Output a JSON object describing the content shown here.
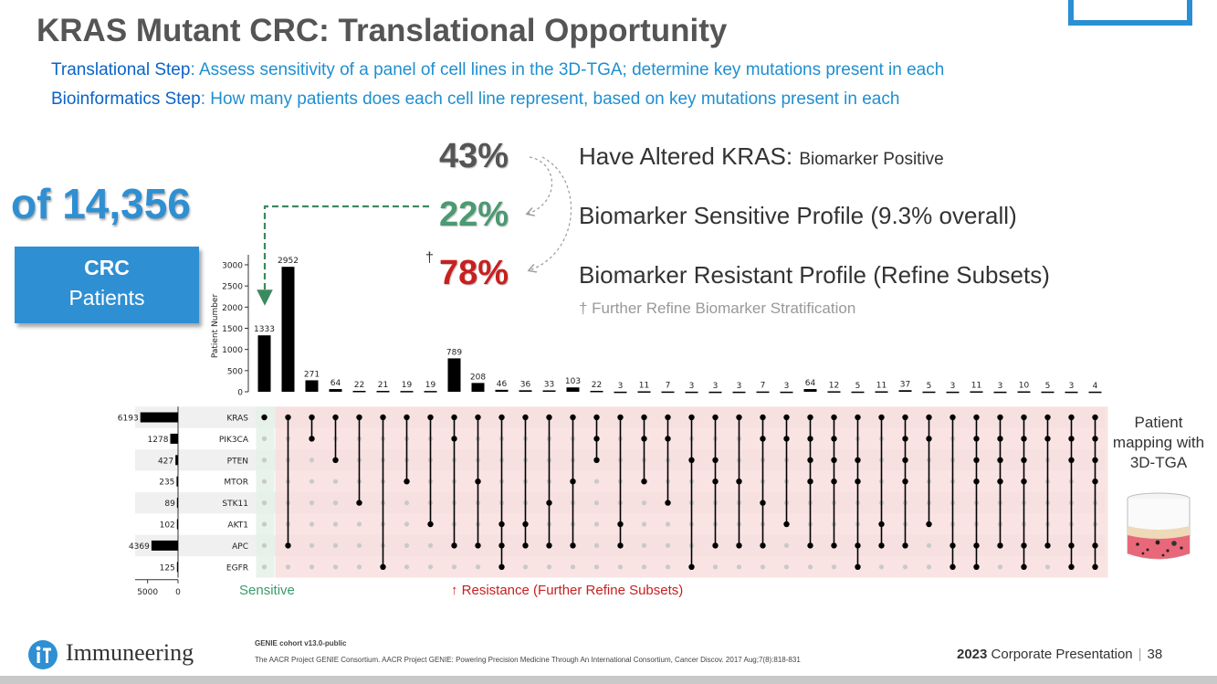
{
  "slide": {
    "title": "KRAS Mutant CRC: Translational Opportunity",
    "sub1_label": "Translational Step",
    "sub1_text": ": Assess sensitivity of a panel of cell lines in the 3D-TGA; determine key mutations present in each",
    "sub2_label": "Bioinformatics Step",
    "sub2_text": ": How many patients does each cell line represent, based on key mutations present in each",
    "total": "of 14,356",
    "crc_bold": "CRC",
    "crc_text": "Patients",
    "pct1": "43%",
    "pct2": "22%",
    "pct3": "78%",
    "dagger": "†",
    "pct1_text": "Have Altered KRAS: ",
    "pct1_small": "Biomarker Positive",
    "pct2_text": "Biomarker Sensitive Profile (9.3% overall)",
    "pct3_text": "Biomarker Resistant Profile (Refine Subsets)",
    "refine_note": "† Further Refine Biomarker Stratification",
    "patient_mapping": "Patient mapping with 3D-TGA",
    "sensitive_label": "Sensitive",
    "resistance_label": "↑ Resistance (Further Refine Subsets)",
    "logo_text": "Immuneering",
    "genie_title": "GENIE cohort v13.0-public",
    "genie_citation": "The AACR Project GENIE Consortium. AACR Project GENIE: Powering Precision Medicine Through An International Consortium, Cancer Discov. 2017 Aug;7(8):818-831",
    "corp_year": "2023",
    "corp_text": "Corporate Presentation",
    "corp_sep": "|",
    "page_number": "38"
  },
  "colors": {
    "title_gray": "#555555",
    "blue_accent": "#2f8fd3",
    "sensitive_green": "#4a9a72",
    "resistant_red": "#c8201f",
    "sensitive_band": "#e3f1e7",
    "resistant_band": "#f8dcdc"
  },
  "chart_data": {
    "type": "upset",
    "ylabel": "Patient Number",
    "yticks": [
      0,
      500,
      1000,
      1500,
      2000,
      2500,
      3000
    ],
    "ylim": [
      0,
      3150
    ],
    "sets": [
      "KRAS",
      "PIK3CA",
      "PTEN",
      "MTOR",
      "STK11",
      "AKT1",
      "APC",
      "EGFR"
    ],
    "set_sizes": [
      6193,
      1278,
      427,
      235,
      89,
      102,
      4369,
      125
    ],
    "set_size_ticks": [
      5000,
      0
    ],
    "set_size_max": 6900,
    "intersection_sizes": [
      1333,
      2952,
      271,
      64,
      22,
      21,
      19,
      19,
      789,
      208,
      46,
      36,
      33,
      103,
      22,
      3,
      11,
      7,
      3,
      3,
      3,
      7,
      3,
      64,
      12,
      5,
      11,
      37,
      5,
      3,
      11,
      3,
      10,
      5,
      3,
      4
    ],
    "memberships": [
      [
        0
      ],
      [
        0,
        6
      ],
      [
        0,
        1
      ],
      [
        0,
        2
      ],
      [
        0,
        4
      ],
      [
        0,
        7
      ],
      [
        0,
        3
      ],
      [
        0,
        5
      ],
      [
        0,
        1,
        6
      ],
      [
        0,
        3,
        6
      ],
      [
        0,
        5,
        6,
        7
      ],
      [
        0,
        5,
        6
      ],
      [
        0,
        4,
        6
      ],
      [
        0,
        3,
        6
      ],
      [
        0,
        1,
        2
      ],
      [
        0,
        5,
        6
      ],
      [
        0,
        1,
        3
      ],
      [
        0,
        1,
        4
      ],
      [
        0,
        2,
        7
      ],
      [
        0,
        2,
        3,
        6
      ],
      [
        0,
        3,
        6
      ],
      [
        0,
        1,
        4,
        6
      ],
      [
        0,
        1,
        5
      ],
      [
        0,
        1,
        2,
        3,
        6
      ],
      [
        0,
        1,
        2,
        3,
        6
      ],
      [
        0,
        2,
        3,
        6,
        7
      ],
      [
        0,
        5,
        6
      ],
      [
        0,
        1,
        2,
        3,
        6
      ],
      [
        0,
        1,
        5
      ],
      [
        0,
        6,
        7
      ],
      [
        0,
        1,
        2,
        3,
        6,
        7
      ],
      [
        0,
        1,
        2,
        3,
        6
      ],
      [
        0,
        1,
        2,
        3,
        6,
        7
      ],
      [
        0,
        1,
        6
      ],
      [
        0,
        1,
        2,
        6,
        7
      ],
      [
        0,
        1,
        2,
        3,
        6,
        7
      ]
    ],
    "sensitive_columns": [
      0
    ],
    "resistant_columns_from": 1
  }
}
